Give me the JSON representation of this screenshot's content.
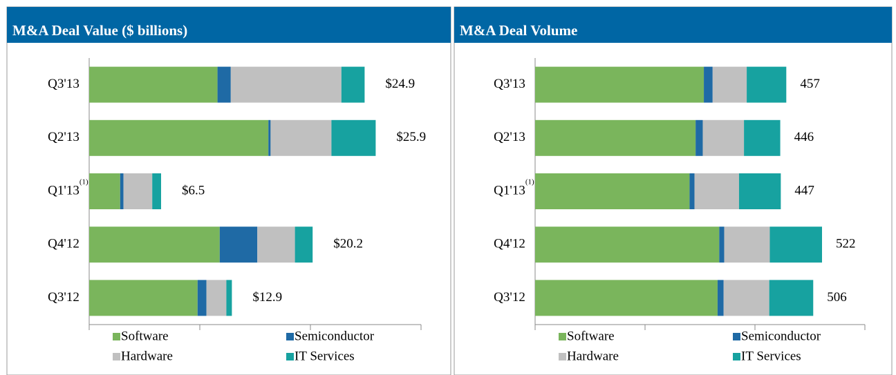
{
  "chart_data": [
    {
      "type": "bar",
      "orientation": "horizontal",
      "stacked": true,
      "title": "M&A Deal Value ($ billions)",
      "categories": [
        "Q3'13",
        "Q2'13",
        "Q1'13",
        "Q4'12",
        "Q3'12"
      ],
      "category_notes": [
        null,
        null,
        "(1)",
        null,
        null
      ],
      "series": [
        {
          "name": "Software",
          "color": "#7ab55c",
          "values": [
            11.6,
            16.2,
            2.8,
            11.8,
            9.8
          ]
        },
        {
          "name": "Semiconductor",
          "color": "#1f6aa5",
          "values": [
            1.2,
            0.2,
            0.3,
            3.4,
            0.8
          ]
        },
        {
          "name": "Hardware",
          "color": "#c0c0c0",
          "values": [
            10.0,
            5.5,
            2.6,
            3.4,
            1.8
          ]
        },
        {
          "name": "IT Services",
          "color": "#17a2a0",
          "values": [
            2.1,
            4.0,
            0.8,
            1.6,
            0.5
          ]
        }
      ],
      "totals": [
        24.9,
        25.9,
        6.5,
        20.2,
        12.9
      ],
      "total_labels": [
        "$24.9",
        "$25.9",
        "$6.5",
        "$20.2",
        "$12.9"
      ],
      "xlim": [
        0,
        30
      ],
      "xticks": [
        0,
        10,
        20,
        30
      ]
    },
    {
      "type": "bar",
      "orientation": "horizontal",
      "stacked": true,
      "title": "M&A Deal Volume",
      "categories": [
        "Q3'13",
        "Q2'13",
        "Q1'13",
        "Q4'12",
        "Q3'12"
      ],
      "category_notes": [
        null,
        null,
        "(1)",
        null,
        null
      ],
      "series": [
        {
          "name": "Software",
          "color": "#7ab55c",
          "values": [
            307,
            292,
            281,
            335,
            332
          ]
        },
        {
          "name": "Semiconductor",
          "color": "#1f6aa5",
          "values": [
            16,
            13,
            9,
            9,
            11
          ]
        },
        {
          "name": "Hardware",
          "color": "#c0c0c0",
          "values": [
            62,
            75,
            81,
            83,
            83
          ]
        },
        {
          "name": "IT Services",
          "color": "#17a2a0",
          "values": [
            72,
            66,
            76,
            95,
            80
          ]
        }
      ],
      "totals": [
        457,
        446,
        447,
        522,
        506
      ],
      "xlim": [
        0,
        600
      ],
      "xticks": [
        0,
        200,
        400,
        600
      ]
    }
  ]
}
